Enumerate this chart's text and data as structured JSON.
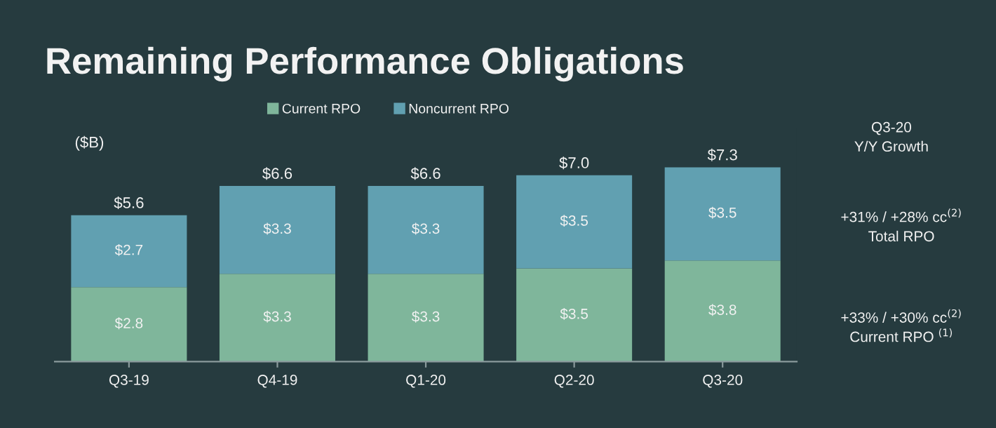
{
  "chart_data": {
    "type": "bar",
    "title": "Remaining Performance Obligations",
    "stacked": true,
    "legend": "top",
    "grid": false,
    "categories": [
      "Q3-19",
      "Q4-19",
      "Q1-20",
      "Q2-20",
      "Q3-20"
    ],
    "series": [
      {
        "name": "Current RPO",
        "color": "#7fb69b",
        "values": [
          2.8,
          3.3,
          3.3,
          3.5,
          3.8
        ],
        "value_labels": [
          "$2.8",
          "$3.3",
          "$3.3",
          "$3.5",
          "$3.8"
        ]
      },
      {
        "name": "Noncurrent RPO",
        "color": "#61a0b1",
        "values": [
          2.7,
          3.3,
          3.3,
          3.5,
          3.5
        ],
        "value_labels": [
          "$2.7",
          "$3.3",
          "$3.3",
          "$3.5",
          "$3.5"
        ]
      }
    ],
    "totals": [
      "$5.6",
      "$6.6",
      "$6.6",
      "$7.0",
      "$7.3"
    ],
    "annotations": [
      "($B)",
      "Q3-20",
      "Y/Y Growth",
      "+31% / +28% cc$^{(2)}$",
      "Total RPO",
      "+33% / +30% cc$^{(2)}$",
      "Current RPO $^{(1)}$"
    ]
  }
}
